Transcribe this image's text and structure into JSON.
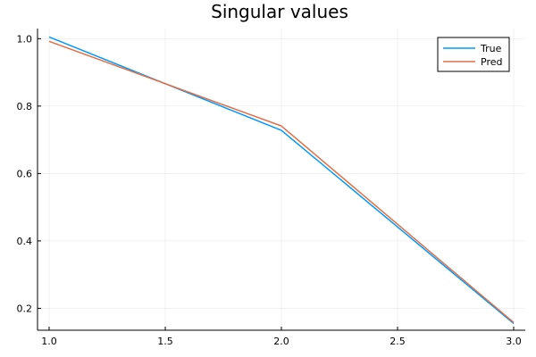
{
  "chart_data": {
    "type": "line",
    "title": "Singular values",
    "xlabel": "",
    "ylabel": "",
    "x": [
      1.0,
      2.0,
      3.0
    ],
    "series": [
      {
        "name": "True",
        "color": "#009AFA",
        "values": [
          1.005,
          0.728,
          0.155
        ]
      },
      {
        "name": "Pred",
        "color": "#E26F46",
        "values": [
          0.992,
          0.741,
          0.158
        ]
      }
    ],
    "xlim": [
      0.95,
      3.05
    ],
    "ylim": [
      0.135,
      1.03
    ],
    "xticks": [
      "1.0",
      "1.5",
      "2.0",
      "2.5",
      "3.0"
    ],
    "yticks": [
      "0.2",
      "0.4",
      "0.6",
      "0.8",
      "1.0"
    ],
    "grid": true,
    "legend_position": "top-right"
  }
}
